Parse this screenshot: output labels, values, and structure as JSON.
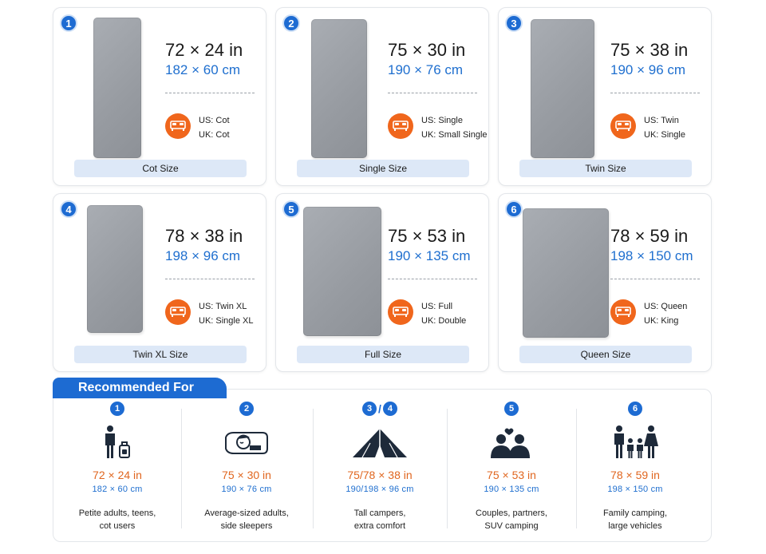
{
  "cards": [
    {
      "num": "1",
      "inches": "72 × 24 in",
      "cm": "182 × 60 cm",
      "us": "US: Cot",
      "uk": "UK: Cot",
      "label": "Cot Size"
    },
    {
      "num": "2",
      "inches": "75 × 30 in",
      "cm": "190 × 76 cm",
      "us": "US: Single",
      "uk": "UK: Small Single",
      "label": "Single Size"
    },
    {
      "num": "3",
      "inches": "75 × 38 in",
      "cm": "190 × 96 cm",
      "us": "US: Twin",
      "uk": "UK: Single",
      "label": "Twin Size"
    },
    {
      "num": "4",
      "inches": "78 × 38 in",
      "cm": "198 × 96 cm",
      "us": "US: Twin XL",
      "uk": "UK: Single XL",
      "label": "Twin XL Size"
    },
    {
      "num": "5",
      "inches": "75 × 53 in",
      "cm": "190 × 135 cm",
      "us": "US: Full",
      "uk": "UK: Double",
      "label": "Full Size"
    },
    {
      "num": "6",
      "inches": "78 × 59 in",
      "cm": "198 × 150 cm",
      "us": "US: Queen",
      "uk": "UK: King",
      "label": "Queen Size"
    }
  ],
  "recommended": {
    "title": "Recommended For",
    "items": [
      {
        "nums": [
          "1"
        ],
        "icon": "adult-with-luggage-icon",
        "inches": "72 × 24 in",
        "cm": "182 × 60 cm",
        "desc1": "Petite adults, teens,",
        "desc2": "cot users"
      },
      {
        "nums": [
          "2"
        ],
        "icon": "side-sleeper-icon",
        "inches": "75 × 30 in",
        "cm": "190 × 76 cm",
        "desc1": "Average-sized adults,",
        "desc2": "side sleepers"
      },
      {
        "nums": [
          "3",
          "4"
        ],
        "icon": "tent-icon",
        "inches": "75/78 × 38 in",
        "cm": "190/198 × 96 cm",
        "desc1": "Tall campers,",
        "desc2": "extra comfort"
      },
      {
        "nums": [
          "5"
        ],
        "icon": "couple-icon",
        "inches": "75 × 53 in",
        "cm": "190 × 135 cm",
        "desc1": "Couples, partners,",
        "desc2": "SUV camping"
      },
      {
        "nums": [
          "6"
        ],
        "icon": "family-icon",
        "inches": "78 × 59 in",
        "cm": "198 × 150 cm",
        "desc1": "Family camping,",
        "desc2": "large vehicles"
      }
    ]
  },
  "colors": {
    "accent_blue": "#1d6bd2",
    "accent_orange": "#f0661c",
    "pad_gray": "#9a9ea4",
    "label_bg": "#dde8f7"
  }
}
